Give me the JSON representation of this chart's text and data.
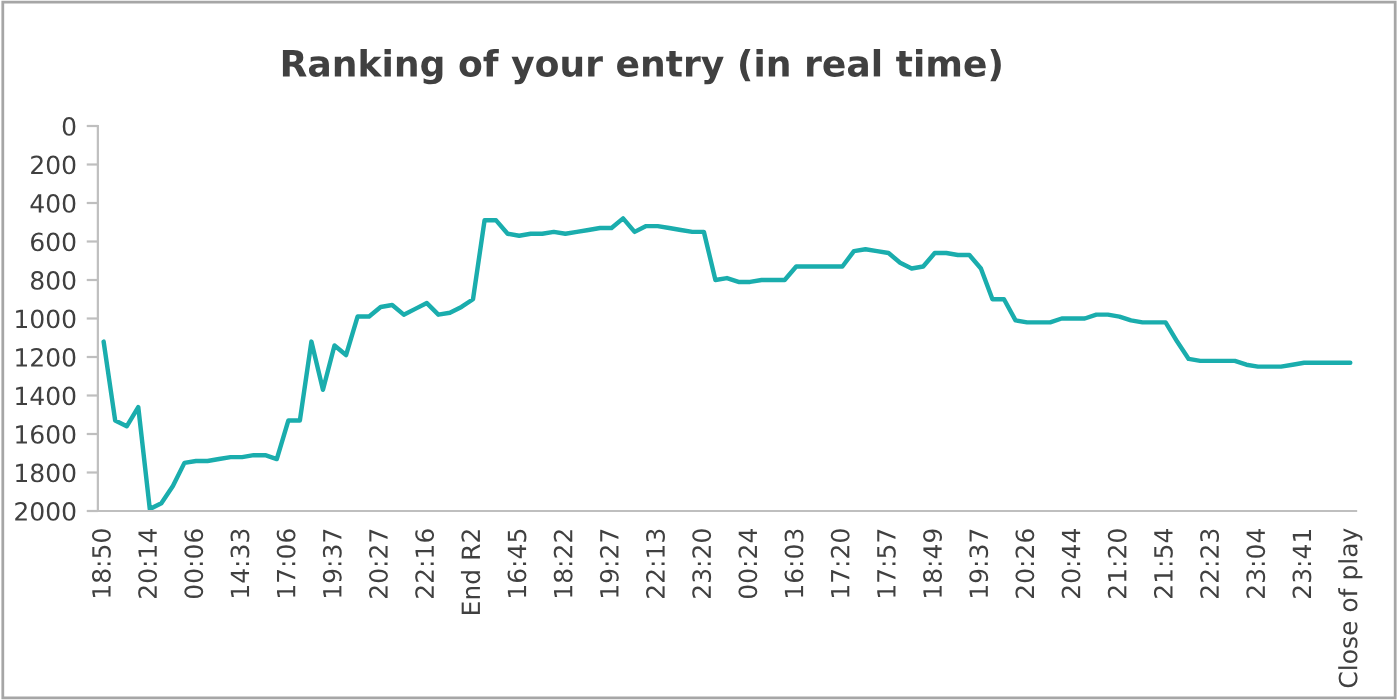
{
  "chart_data": {
    "type": "line",
    "title": "Ranking of your entry (in real time)",
    "categories": [
      "18:50",
      null,
      null,
      null,
      "20:14",
      null,
      null,
      null,
      "00:06",
      null,
      null,
      null,
      "14:33",
      null,
      null,
      null,
      "17:06",
      null,
      null,
      null,
      "19:37",
      null,
      null,
      null,
      "20:27",
      null,
      null,
      null,
      "22:16",
      null,
      null,
      null,
      "End R2",
      null,
      null,
      null,
      "16:45",
      null,
      null,
      null,
      "18:22",
      null,
      null,
      null,
      "19:27",
      null,
      null,
      null,
      "22:13",
      null,
      null,
      null,
      "23:20",
      null,
      null,
      null,
      "00:24",
      null,
      null,
      null,
      "16:03",
      null,
      null,
      null,
      "17:20",
      null,
      null,
      null,
      "17:57",
      null,
      null,
      null,
      "18:49",
      null,
      null,
      null,
      "19:37",
      null,
      null,
      null,
      "20:26",
      null,
      null,
      null,
      "20:44",
      null,
      null,
      null,
      "21:20",
      null,
      null,
      null,
      "21:54",
      null,
      null,
      null,
      "22:23",
      null,
      null,
      null,
      "23:04",
      null,
      null,
      null,
      "23:41",
      null,
      null,
      null,
      "Close of play"
    ],
    "series": [
      {
        "color": "#1aadad",
        "values": [
          1120,
          1530,
          1560,
          1460,
          1990,
          1960,
          1870,
          1750,
          1740,
          1740,
          1730,
          1720,
          1720,
          1710,
          1710,
          1730,
          1530,
          1530,
          1120,
          1370,
          1140,
          1190,
          990,
          990,
          940,
          930,
          980,
          950,
          920,
          980,
          970,
          940,
          900,
          490,
          490,
          560,
          570,
          560,
          560,
          550,
          560,
          550,
          540,
          530,
          530,
          480,
          550,
          520,
          520,
          530,
          540,
          550,
          550,
          800,
          790,
          810,
          810,
          800,
          800,
          800,
          730,
          730,
          730,
          730,
          730,
          650,
          640,
          650,
          660,
          710,
          740,
          730,
          660,
          660,
          670,
          670,
          740,
          900,
          900,
          1010,
          1020,
          1020,
          1020,
          1000,
          1000,
          1000,
          980,
          980,
          990,
          1010,
          1020,
          1020,
          1020,
          1120,
          1210,
          1220,
          1220,
          1220,
          1220,
          1240,
          1250,
          1250,
          1250,
          1240,
          1230,
          1230,
          1230,
          1230,
          1230
        ]
      }
    ],
    "ylim": [
      2000,
      0
    ],
    "yticks": [
      0,
      200,
      400,
      600,
      800,
      1000,
      1200,
      1400,
      1600,
      1800,
      2000
    ],
    "grid": false,
    "legend": false,
    "marker": "none",
    "line_style": "solid"
  }
}
